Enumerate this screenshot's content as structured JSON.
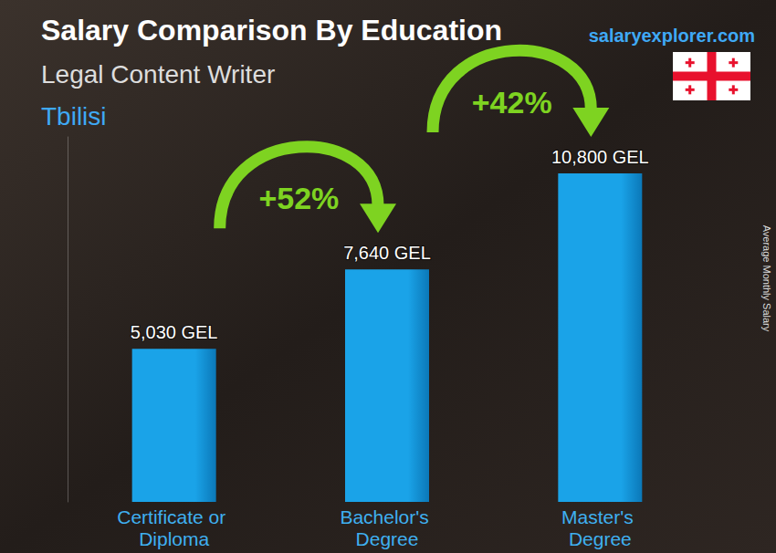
{
  "chart_data": {
    "type": "bar",
    "title": "Salary Comparison By Education",
    "subtitle": "Legal Content Writer",
    "location": "Tbilisi",
    "source": "salaryexplorer.com",
    "ylabel": "Average Monthly Salary",
    "categories": [
      "Certificate or Diploma",
      "Bachelor's Degree",
      "Master's Degree"
    ],
    "values": [
      5030,
      7640,
      10800
    ],
    "value_labels": [
      "5,030 GEL",
      "7,640 GEL",
      "10,800 GEL"
    ],
    "data_labels": true,
    "annotations": [
      "+52%",
      "+42%"
    ],
    "color": "#1aa3e8",
    "ylim": [
      0,
      12000
    ],
    "tick_labels": false,
    "grid": false
  }
}
